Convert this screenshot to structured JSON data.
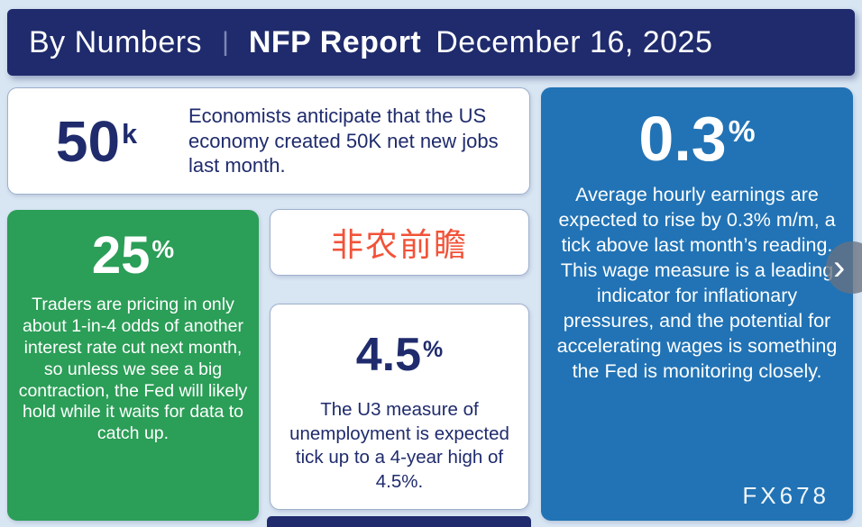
{
  "header": {
    "title_left": "By Numbers",
    "divider": "|",
    "report_name": "NFP Report",
    "date": "December 16, 2025"
  },
  "cards": {
    "jobs": {
      "value": "50",
      "unit": "k",
      "text": "Economists anticipate that the US economy created 50K net new jobs last month."
    },
    "rate_cut": {
      "value": "25",
      "unit": "%",
      "text": "Traders are pricing in only about 1-in-4 odds of another interest rate cut next month, so unless we see a big contraction, the Fed will likely hold while it waits for data to catch up."
    },
    "preview": {
      "text": "非农前瞻"
    },
    "unemployment": {
      "value": "4.5",
      "unit": "%",
      "text": "The U3 measure of unemployment is expected tick up to a 4-year high of 4.5%."
    },
    "earnings": {
      "value": "0.3",
      "unit": "%",
      "text": "Average hourly earnings are expected to rise by 0.3% m/m, a tick above last month’s reading. This wage measure is a leading indicator for inflationary pressures, and the potential for accelerating wages is something the Fed is monitoring closely."
    }
  },
  "watermark": "FX678",
  "nav": {
    "next_icon": "›"
  },
  "colors": {
    "navy": "#1f2b6c",
    "green": "#2b9e57",
    "blue": "#2173b5",
    "red_accent": "#f25238",
    "background": "#d8e5f2"
  }
}
